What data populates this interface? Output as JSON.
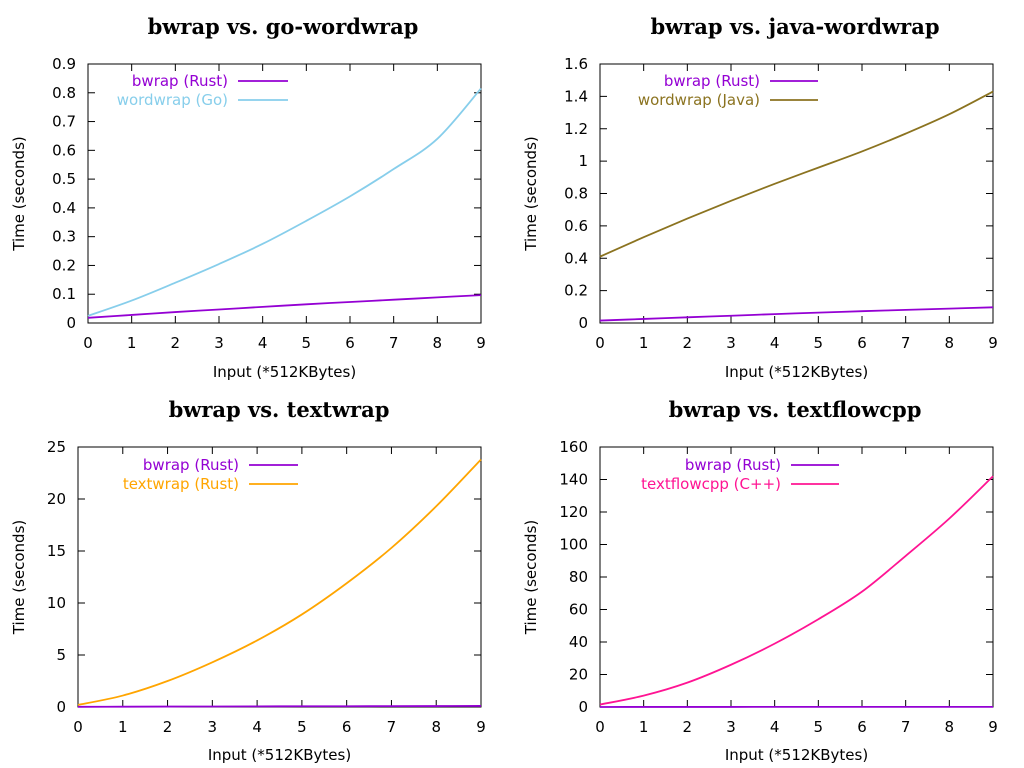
{
  "chart_data": [
    {
      "type": "line",
      "title": "bwrap vs. go-wordwrap",
      "xlabel": "Input (*512KBytes)",
      "ylabel": "Time (seconds)",
      "xlim": [
        0,
        9
      ],
      "ylim": [
        0,
        0.9
      ],
      "xticks": [
        0,
        1,
        2,
        3,
        4,
        5,
        6,
        7,
        8,
        9
      ],
      "xtick_labels": [
        "0",
        "1",
        "2",
        "3",
        "4",
        "5",
        "6",
        "7",
        "8",
        "9"
      ],
      "yticks": [
        0,
        0.1,
        0.2,
        0.3,
        0.4,
        0.5,
        0.6,
        0.7,
        0.8,
        0.9
      ],
      "ytick_labels": [
        "0",
        "0.1",
        "0.2",
        "0.3",
        "0.4",
        "0.5",
        "0.6",
        "0.7",
        "0.8",
        "0.9"
      ],
      "legend_position": "top-left",
      "series": [
        {
          "name": "bwrap (Rust)",
          "color": "#9400d3",
          "x": [
            0,
            1,
            2,
            3,
            4,
            5,
            6,
            7,
            8,
            9
          ],
          "y": [
            0.018,
            0.028,
            0.038,
            0.047,
            0.056,
            0.065,
            0.073,
            0.081,
            0.089,
            0.097
          ]
        },
        {
          "name": "wordwrap (Go)",
          "color": "#87ceeb",
          "x": [
            0,
            1,
            2,
            3,
            4,
            5,
            6,
            7,
            8,
            9
          ],
          "y": [
            0.025,
            0.078,
            0.14,
            0.205,
            0.275,
            0.355,
            0.44,
            0.535,
            0.64,
            0.815
          ]
        }
      ]
    },
    {
      "type": "line",
      "title": "bwrap vs. java-wordwrap",
      "xlabel": "Input (*512KBytes)",
      "ylabel": "Time (seconds)",
      "xlim": [
        0,
        9
      ],
      "ylim": [
        0,
        1.6
      ],
      "xticks": [
        0,
        1,
        2,
        3,
        4,
        5,
        6,
        7,
        8,
        9
      ],
      "xtick_labels": [
        "0",
        "1",
        "2",
        "3",
        "4",
        "5",
        "6",
        "7",
        "8",
        "9"
      ],
      "yticks": [
        0,
        0.2,
        0.4,
        0.6,
        0.8,
        1,
        1.2,
        1.4,
        1.6
      ],
      "ytick_labels": [
        "0",
        "0.2",
        "0.4",
        "0.6",
        "0.8",
        "1",
        "1.2",
        "1.4",
        "1.6"
      ],
      "legend_position": "top-left",
      "series": [
        {
          "name": "bwrap (Rust)",
          "color": "#9400d3",
          "x": [
            0,
            1,
            2,
            3,
            4,
            5,
            6,
            7,
            8,
            9
          ],
          "y": [
            0.015,
            0.025,
            0.035,
            0.045,
            0.055,
            0.064,
            0.073,
            0.081,
            0.089,
            0.097
          ]
        },
        {
          "name": "wordwrap (Java)",
          "color": "#8b7320",
          "x": [
            0,
            1,
            2,
            3,
            4,
            5,
            6,
            7,
            8,
            9
          ],
          "y": [
            0.41,
            0.53,
            0.645,
            0.755,
            0.86,
            0.96,
            1.06,
            1.17,
            1.29,
            1.43
          ]
        }
      ]
    },
    {
      "type": "line",
      "title": "bwrap vs. textwrap",
      "xlabel": "Input (*512KBytes)",
      "ylabel": "Time (seconds)",
      "xlim": [
        0,
        9
      ],
      "ylim": [
        0,
        25
      ],
      "xticks": [
        0,
        1,
        2,
        3,
        4,
        5,
        6,
        7,
        8,
        9
      ],
      "xtick_labels": [
        "0",
        "1",
        "2",
        "3",
        "4",
        "5",
        "6",
        "7",
        "8",
        "9"
      ],
      "yticks": [
        0,
        5,
        10,
        15,
        20,
        25
      ],
      "ytick_labels": [
        "0",
        "5",
        "10",
        "15",
        "20",
        "25"
      ],
      "legend_position": "top-left",
      "series": [
        {
          "name": "bwrap (Rust)",
          "color": "#9400d3",
          "x": [
            0,
            1,
            2,
            3,
            4,
            5,
            6,
            7,
            8,
            9
          ],
          "y": [
            0.02,
            0.03,
            0.04,
            0.05,
            0.06,
            0.07,
            0.075,
            0.085,
            0.09,
            0.1
          ]
        },
        {
          "name": "textwrap (Rust)",
          "color": "#ffa500",
          "x": [
            0,
            1,
            2,
            3,
            4,
            5,
            6,
            7,
            8,
            9
          ],
          "y": [
            0.2,
            1.1,
            2.5,
            4.3,
            6.4,
            8.9,
            11.9,
            15.3,
            19.3,
            23.8
          ]
        }
      ]
    },
    {
      "type": "line",
      "title": "bwrap vs. textflowcpp",
      "xlabel": "Input (*512KBytes)",
      "ylabel": "Time (seconds)",
      "xlim": [
        0,
        9
      ],
      "ylim": [
        0,
        160
      ],
      "xticks": [
        0,
        1,
        2,
        3,
        4,
        5,
        6,
        7,
        8,
        9
      ],
      "xtick_labels": [
        "0",
        "1",
        "2",
        "3",
        "4",
        "5",
        "6",
        "7",
        "8",
        "9"
      ],
      "yticks": [
        0,
        20,
        40,
        60,
        80,
        100,
        120,
        140,
        160
      ],
      "ytick_labels": [
        "0",
        "20",
        "40",
        "60",
        "80",
        "100",
        "120",
        "140",
        "160"
      ],
      "legend_position": "top-left",
      "series": [
        {
          "name": "bwrap (Rust)",
          "color": "#9400d3",
          "x": [
            0,
            1,
            2,
            3,
            4,
            5,
            6,
            7,
            8,
            9
          ],
          "y": [
            0.02,
            0.03,
            0.04,
            0.05,
            0.06,
            0.07,
            0.08,
            0.085,
            0.09,
            0.1
          ]
        },
        {
          "name": "textflowcpp (C++)",
          "color": "#ff1493",
          "x": [
            0,
            1,
            2,
            3,
            4,
            5,
            6,
            7,
            8,
            9
          ],
          "y": [
            1.5,
            7,
            15,
            26,
            39,
            54,
            71,
            93,
            116,
            142
          ]
        }
      ]
    }
  ]
}
